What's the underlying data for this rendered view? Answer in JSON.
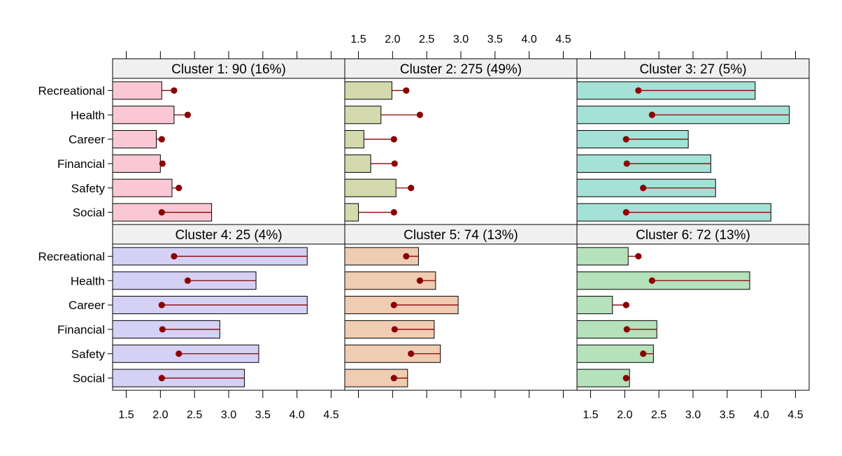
{
  "chart_data": {
    "type": "bar",
    "layout": "lattice 3 columns x 2 rows",
    "categories": [
      "Recreational",
      "Health",
      "Career",
      "Financial",
      "Safety",
      "Social"
    ],
    "xlim": [
      1.3,
      4.7
    ],
    "x_ticks": [
      "1.5",
      "2.0",
      "2.5",
      "3.0",
      "3.5",
      "4.0",
      "4.5"
    ],
    "axis_labels_top_col2": [
      "1.5",
      "2.0",
      "2.5",
      "3.0",
      "3.5",
      "4.0",
      "4.5"
    ],
    "axis_labels_bottom_col1": [
      "1.5",
      "2.0",
      "2.5",
      "3.0",
      "3.5",
      "4.0",
      "4.5"
    ],
    "axis_labels_bottom_col3": [
      "1.5",
      "2.0",
      "2.5",
      "3.0",
      "3.5",
      "4.0",
      "4.5"
    ],
    "overall_mean_dots": [
      2.2,
      2.4,
      2.02,
      2.03,
      2.27,
      2.02
    ],
    "dot_color": "#8B0000",
    "panels": [
      {
        "title": "Cluster 1: 90 (16%)",
        "color": "#FAC8D4",
        "values": [
          2.02,
          2.2,
          1.94,
          2.0,
          2.17,
          2.75
        ]
      },
      {
        "title": "Cluster 2: 275 (49%)",
        "color": "#D4DAAE",
        "values": [
          1.99,
          1.83,
          1.58,
          1.68,
          2.05,
          1.5
        ]
      },
      {
        "title": "Cluster 3: 27 (5%)",
        "color": "#A5E1D6",
        "values": [
          3.91,
          4.41,
          2.93,
          3.26,
          3.33,
          4.14
        ]
      },
      {
        "title": "Cluster 4: 25 (4%)",
        "color": "#D5D1F5",
        "values": [
          4.15,
          3.4,
          4.15,
          2.87,
          3.44,
          3.23
        ]
      },
      {
        "title": "Cluster 5: 74 (13%)",
        "color": "#EFCCB2",
        "values": [
          2.38,
          2.63,
          2.96,
          2.61,
          2.7,
          2.22
        ]
      },
      {
        "title": "Cluster 6: 72 (13%)",
        "color": "#B5E1BB",
        "values": [
          2.05,
          3.83,
          1.82,
          2.47,
          2.42,
          2.07
        ]
      }
    ]
  }
}
